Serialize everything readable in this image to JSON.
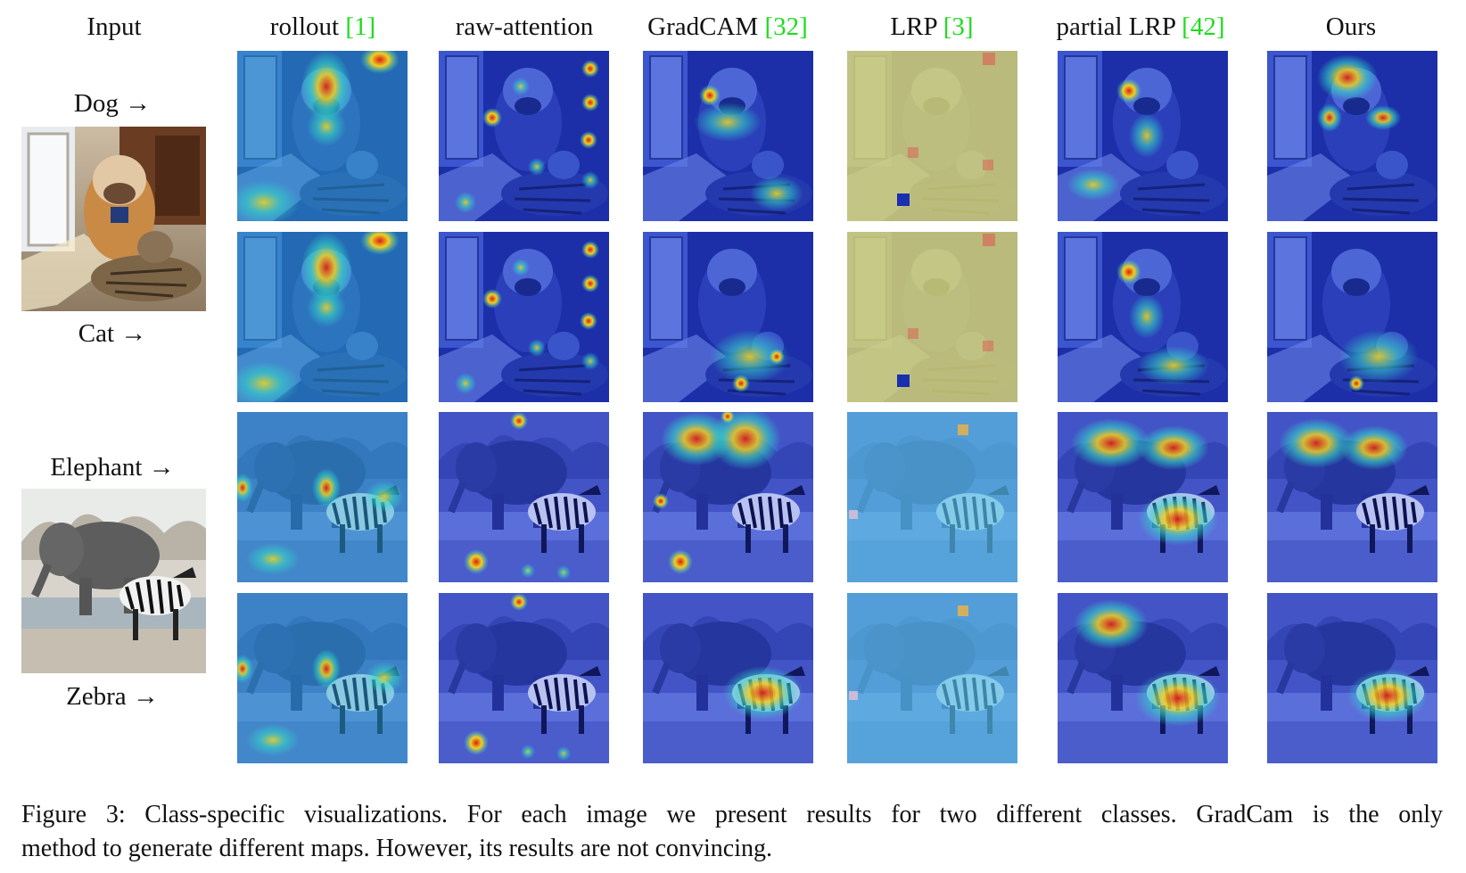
{
  "columns": [
    {
      "name": "Input"
    },
    {
      "name": "rollout",
      "ref": "1"
    },
    {
      "name": "raw-attention"
    },
    {
      "name": "GradCAM",
      "ref": "32"
    },
    {
      "name": "LRP",
      "ref": "3"
    },
    {
      "name": "partial LRP",
      "ref": "42"
    },
    {
      "name": "Ours"
    }
  ],
  "classes": {
    "dog": "Dog →",
    "cat": "Cat →",
    "elephant": "Elephant →",
    "zebra": "Zebra →"
  },
  "caption": {
    "line1": "Figure 3: Class-specific visualizations. For each image we present results for two different classes. GradCam is the only",
    "line2": "method to generate different maps. However, its results are not convincing."
  },
  "colors": {
    "citation": "#1fdc1f",
    "heat_low": "#1a2fb0",
    "heat_mid": "#33d6c9",
    "heat_high": "#d8201a"
  }
}
